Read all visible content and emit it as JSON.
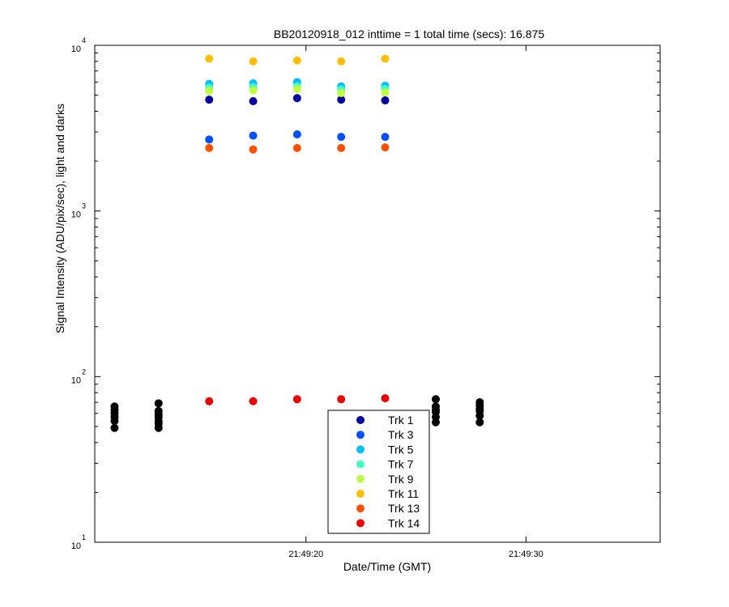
{
  "chart_data": {
    "type": "scatter",
    "title": "BB20120918_012 inttime = 1 total time (secs): 16.875",
    "xlabel": "Date/Time (GMT)",
    "ylabel": "Signal Intensity (ADU/pix/sec), light and darks",
    "yscale": "log",
    "ylim": [
      10,
      10000
    ],
    "xlim": [
      "21:49:10.4",
      "21:49:36.1"
    ],
    "x_ticks": [
      "21:49:20",
      "21:49:30"
    ],
    "y_ticks": [
      {
        "base": "10",
        "exp": "1",
        "value": 10
      },
      {
        "base": "10",
        "exp": "2",
        "value": 100
      },
      {
        "base": "10",
        "exp": "3",
        "value": 1000
      },
      {
        "base": "10",
        "exp": "4",
        "value": 10000
      }
    ],
    "grid": false,
    "legend_position": "bottom-center",
    "series": [
      {
        "name": "Trk 1",
        "color": "#00009f",
        "x": [
          "21:49:15.6",
          "21:49:17.6",
          "21:49:19.6",
          "21:49:21.6",
          "21:49:23.6"
        ],
        "y": [
          4700,
          4600,
          4800,
          4700,
          4650
        ]
      },
      {
        "name": "Trk 3",
        "color": "#0050ff",
        "x": [
          "21:49:15.6",
          "21:49:17.6",
          "21:49:19.6",
          "21:49:21.6",
          "21:49:23.6"
        ],
        "y": [
          2700,
          2850,
          2900,
          2800,
          2800
        ]
      },
      {
        "name": "Trk 5",
        "color": "#00bfff",
        "x": [
          "21:49:15.6",
          "21:49:17.6",
          "21:49:19.6",
          "21:49:21.6",
          "21:49:23.6"
        ],
        "y": [
          5850,
          5900,
          6000,
          5650,
          5700
        ]
      },
      {
        "name": "Trk 7",
        "color": "#40ffbf",
        "x": [
          "21:49:15.6",
          "21:49:17.6",
          "21:49:19.6",
          "21:49:21.6",
          "21:49:23.6"
        ],
        "y": [
          5550,
          5600,
          5650,
          5400,
          5450
        ]
      },
      {
        "name": "Trk 9",
        "color": "#bfff40",
        "x": [
          "21:49:15.6",
          "21:49:17.6",
          "21:49:19.6",
          "21:49:21.6",
          "21:49:23.6"
        ],
        "y": [
          5300,
          5350,
          5450,
          5150,
          5200
        ]
      },
      {
        "name": "Trk 11",
        "color": "#ffbf00",
        "x": [
          "21:49:15.6",
          "21:49:17.6",
          "21:49:19.6",
          "21:49:21.6",
          "21:49:23.6"
        ],
        "y": [
          8300,
          8000,
          8100,
          8000,
          8300
        ]
      },
      {
        "name": "Trk 13",
        "color": "#ff5000",
        "x": [
          "21:49:15.6",
          "21:49:17.6",
          "21:49:19.6",
          "21:49:21.6",
          "21:49:23.6"
        ],
        "y": [
          2400,
          2350,
          2400,
          2400,
          2420
        ]
      },
      {
        "name": "Trk 14",
        "color": "#ef0000",
        "x": [
          "21:49:15.6",
          "21:49:17.6",
          "21:49:19.6",
          "21:49:21.6",
          "21:49:23.6"
        ],
        "y": [
          71,
          71,
          73,
          73,
          74
        ]
      }
    ],
    "darks": {
      "color": "#000000",
      "x": [
        "21:49:11.3",
        "21:49:11.3",
        "21:49:11.3",
        "21:49:11.3",
        "21:49:11.3",
        "21:49:11.3",
        "21:49:13.3",
        "21:49:13.3",
        "21:49:13.3",
        "21:49:13.3",
        "21:49:13.3",
        "21:49:13.3",
        "21:49:13.3",
        "21:49:25.9",
        "21:49:25.9",
        "21:49:25.9",
        "21:49:25.9",
        "21:49:25.9",
        "21:49:25.9",
        "21:49:27.9",
        "21:49:27.9",
        "21:49:27.9",
        "21:49:27.9",
        "21:49:27.9",
        "21:49:27.9"
      ],
      "y": [
        66,
        63,
        60,
        57,
        54,
        49,
        69,
        62,
        59,
        57,
        54,
        52,
        49,
        73,
        66,
        63,
        61,
        57,
        53,
        70,
        67,
        64,
        62,
        58,
        53
      ]
    }
  }
}
